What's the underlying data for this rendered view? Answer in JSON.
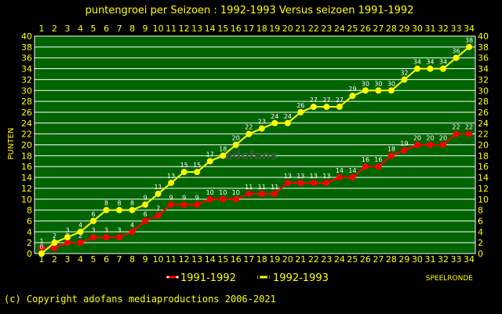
{
  "copyright": "(c) Copyright adofans mediaproductions 2006-2021",
  "colors": {
    "background": "#000000",
    "plot": "#006400",
    "grid": "#ffffff",
    "text": "#ffff00",
    "series_1991": "#ff0000",
    "series_1992": "#ffff00"
  },
  "chart_data": {
    "type": "line",
    "title": "puntengroei per Seizoen : 1992-1993 Versus seizoen 1991-1992",
    "xlabel": "SPEELRONDE",
    "ylabel": "PUNTEN",
    "watermark": "adofans",
    "x": [
      1,
      2,
      3,
      4,
      5,
      6,
      7,
      8,
      9,
      10,
      11,
      12,
      13,
      14,
      15,
      16,
      17,
      18,
      19,
      20,
      21,
      22,
      23,
      24,
      25,
      26,
      27,
      28,
      29,
      30,
      31,
      32,
      33,
      34
    ],
    "xlim": [
      1,
      34
    ],
    "ylim": [
      0,
      40
    ],
    "yticks": [
      0,
      2,
      4,
      6,
      8,
      10,
      12,
      14,
      16,
      18,
      20,
      22,
      24,
      26,
      28,
      30,
      32,
      34,
      36,
      38,
      40
    ],
    "grid": true,
    "legend": "bottom",
    "series": [
      {
        "name": "1991-1992",
        "color": "#ff0000",
        "values": [
          1,
          1,
          2,
          2,
          3,
          3,
          3,
          4,
          6,
          7,
          9,
          9,
          9,
          10,
          10,
          10,
          11,
          11,
          11,
          13,
          13,
          13,
          13,
          14,
          14,
          16,
          16,
          18,
          19,
          20,
          20,
          20,
          22,
          22
        ]
      },
      {
        "name": "1992-1993",
        "color": "#ffff00",
        "values": [
          0,
          2,
          3,
          4,
          6,
          8,
          8,
          8,
          9,
          11,
          13,
          15,
          15,
          17,
          18,
          20,
          22,
          23,
          24,
          24,
          26,
          27,
          27,
          27,
          29,
          30,
          30,
          30,
          32,
          34,
          34,
          34,
          36,
          38
        ]
      }
    ]
  }
}
